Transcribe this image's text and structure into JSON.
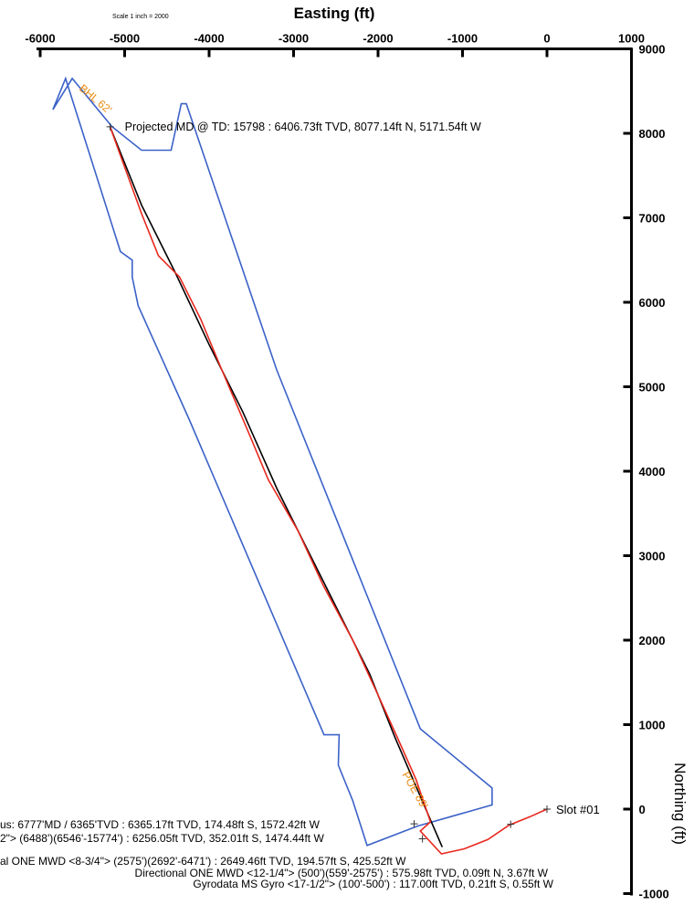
{
  "chart_data": {
    "type": "line",
    "title": "",
    "scale_note": "Scale 1 inch = 2000",
    "xlabel": "Easting (ft)",
    "ylabel": "Northing (ft)",
    "xlim": [
      -6000,
      1000
    ],
    "ylim": [
      -1000,
      9000
    ],
    "x_ticks": [
      "-6000",
      "-5000",
      "-4000",
      "-3000",
      "-2000",
      "-1000",
      "0",
      "1000"
    ],
    "y_ticks": [
      "9000",
      "8000",
      "7000",
      "6000",
      "5000",
      "4000",
      "3000",
      "2000",
      "1000",
      "0",
      "-1000"
    ],
    "grid": false,
    "colors": {
      "boundary": "#3b62c8",
      "plan": "#000000",
      "actual": "#e8281e",
      "orange": "#e88a10"
    },
    "boundary": {
      "x": [
        -5700,
        -5850,
        -5620,
        -5150,
        -4800,
        -4450,
        -4330,
        -4270,
        -4270,
        -3200,
        -1500,
        -650,
        -650,
        -1530,
        -2130,
        -2300,
        -2470,
        -2460,
        -2640,
        -4230,
        -4840,
        -4910,
        -4910,
        -5050,
        -5700
      ],
      "y": [
        8650,
        8280,
        8650,
        8080,
        7800,
        7800,
        8350,
        8350,
        8350,
        5200,
        950,
        250,
        50,
        -200,
        -430,
        100,
        520,
        880,
        880,
        4600,
        5960,
        6300,
        6500,
        6600,
        8650
      ]
    },
    "series": [
      {
        "x": [
          -5171.5,
          -4800,
          -4400,
          -4000,
          -3600,
          -3200,
          -2800,
          -2400,
          -2100,
          -1800,
          -1500,
          -1240
        ],
        "y": [
          8077.1,
          7150,
          6350,
          5500,
          4700,
          3800,
          3000,
          2200,
          1600,
          850,
          150,
          -450
        ]
      },
      {
        "x": [
          -5171.5,
          -5000,
          -4800,
          -4600,
          -4350,
          -4100,
          -3850,
          -3550,
          -3300,
          -2950,
          -2650,
          -2300,
          -2000,
          -1750,
          -1550,
          -1380,
          -1500,
          -1250,
          -980,
          -700,
          -450,
          -200,
          0
        ],
        "y": [
          8077.1,
          7600,
          7050,
          6550,
          6300,
          5800,
          5200,
          4500,
          3900,
          3300,
          2650,
          2000,
          1350,
          800,
          350,
          -150,
          -260,
          -530,
          -470,
          -360,
          -190,
          -90,
          0
        ]
      }
    ],
    "markers": [
      {
        "x": -5171.5,
        "y": 8077.1
      },
      {
        "x": 0,
        "y": 0
      },
      {
        "x": -430,
        "y": -180
      },
      {
        "x": -1474.4,
        "y": -352.0
      },
      {
        "x": -1572.4,
        "y": -174.5
      }
    ],
    "annotations": {
      "projected": "Projected MD @ TD: 15798 : 6406.73ft TVD, 8077.14ft N, 5171.54ft W",
      "bhl": "BHL 62'",
      "poe": "POE 89'",
      "slot": "Slot #01",
      "survey_lines": [
        "us: 6777'MD / 6365'TVD : 6365.17ft TVD, 174.48ft S, 1572.42ft W",
        "2\"> (6488')(6546'-15774') : 6256.05ft TVD, 352.01ft S, 1474.44ft W",
        "al ONE MWD <8-3/4\"> (2575')(2692'-6471') : 2649.46ft TVD, 194.57ft S, 425.52ft W",
        "Directional ONE MWD <12-1/4\"> (500')(559'-2575') : 575.98ft TVD, 0.09ft N, 3.67ft W",
        "Gyrodata MS Gyro <17-1/2\"> (100'-500') : 117.00ft TVD, 0.21ft S, 0.55ft W"
      ]
    }
  }
}
